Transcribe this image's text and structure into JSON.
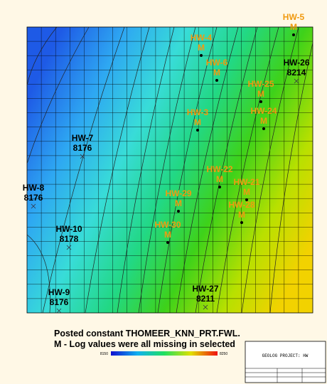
{
  "wells": [
    {
      "name": "HW-5",
      "value": "M",
      "status": "missing"
    },
    {
      "name": "HW-4",
      "value": "M",
      "status": "missing"
    },
    {
      "name": "HW-6",
      "value": "M",
      "status": "missing"
    },
    {
      "name": "HW-26",
      "value": "8214",
      "status": "posted"
    },
    {
      "name": "HW-25",
      "value": "M",
      "status": "missing"
    },
    {
      "name": "HW-24",
      "value": "M",
      "status": "missing"
    },
    {
      "name": "HW-3",
      "value": "M",
      "status": "missing"
    },
    {
      "name": "HW-7",
      "value": "8176",
      "status": "posted"
    },
    {
      "name": "HW-22",
      "value": "M",
      "status": "missing"
    },
    {
      "name": "HW-21",
      "value": "M",
      "status": "missing"
    },
    {
      "name": "HW-8",
      "value": "8176",
      "status": "posted"
    },
    {
      "name": "HW-29",
      "value": "M",
      "status": "missing"
    },
    {
      "name": "HW-28",
      "value": "M",
      "status": "missing"
    },
    {
      "name": "HW-10",
      "value": "8178",
      "status": "posted"
    },
    {
      "name": "HW-30",
      "value": "M",
      "status": "missing"
    },
    {
      "name": "HW-9",
      "value": "8176",
      "status": "posted"
    },
    {
      "name": "HW-27",
      "value": "8211",
      "status": "posted"
    }
  ],
  "caption": [
    "Posted constant THOMEER_KNN_PRT.FWL.",
    "M - Log values were all missing in selected"
  ],
  "colorbar": {
    "min_label": "8150",
    "max_label": "8250"
  },
  "title_block": {
    "title": "GEOLOG PROJECT: HW"
  }
}
